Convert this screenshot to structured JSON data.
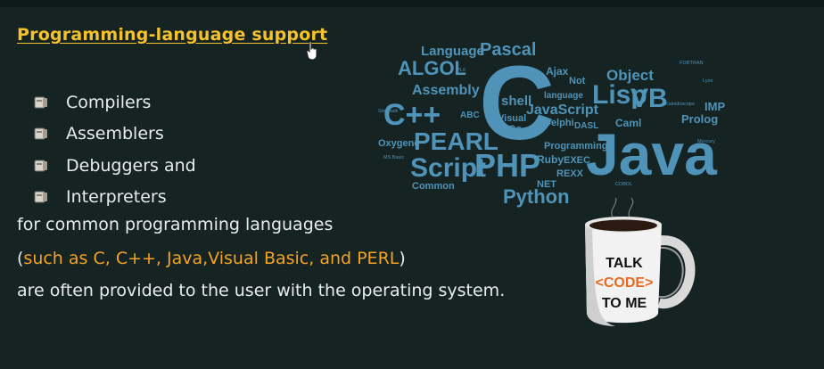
{
  "title": "Programming-language support",
  "bullets": [
    "Compilers",
    "Assemblers",
    "Debuggers and",
    "Interpreters"
  ],
  "line1": "for common programming languages",
  "line2": {
    "open": "(",
    "highlight": "such as C, C++, Java,Visual Basic, and PERL",
    "close": ")"
  },
  "line3": "are often provided to the user with the operating system.",
  "word_cloud": {
    "words": [
      "C",
      "Java",
      "C++",
      "PHP",
      "PEARL",
      "Script",
      "Lisp",
      "VB",
      "ALGOL",
      "Pascal",
      "Language",
      "Python",
      "Assembly",
      "Object",
      "JavaScript",
      "shell",
      "Ruby",
      "Programming",
      "Prolog",
      "Oxygene",
      "Common",
      "Delphi",
      "Caml",
      "IMP",
      "NET",
      "REXX",
      "EXEC",
      "Ajax",
      "Visual",
      "Go",
      "ABC",
      "Not",
      "language",
      "DASL",
      "Smalltalk",
      "PL/I",
      "MS Basic",
      "FORTRAN",
      "COBOL",
      "Kaleidoscope",
      "Lynx",
      "Mercury"
    ],
    "color": "#4f93b8"
  },
  "mug": {
    "line1": "TALK",
    "line2": "<CODE>",
    "line3": "TO ME",
    "code_color": "#e86a1e"
  },
  "colors": {
    "background": "#152323",
    "title": "#f5c22a",
    "highlight": "#f5a321",
    "text": "#e8ecec"
  }
}
